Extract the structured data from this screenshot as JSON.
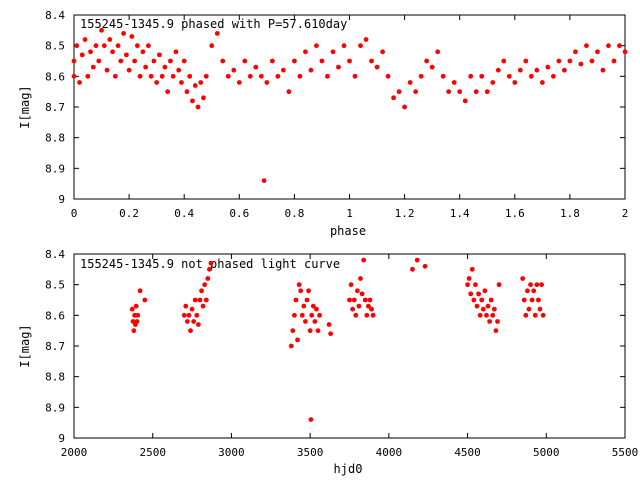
{
  "chart_data": [
    {
      "type": "scatter",
      "title": "155245-1345.9 phased with P=57.610day",
      "xlabel": "phase",
      "ylabel": "I[mag]",
      "xlim": [
        0,
        2
      ],
      "ylim": [
        8.4,
        9.0
      ],
      "y_inverted": true,
      "x_ticks": [
        "0",
        "0.2",
        "0.4",
        "0.6",
        "0.8",
        "1",
        "1.2",
        "1.4",
        "1.6",
        "1.8",
        "2"
      ],
      "y_ticks": [
        "8.4",
        "8.5",
        "8.6",
        "8.7",
        "8.8",
        "8.9",
        "9"
      ],
      "marker_color": "#ff0000",
      "series": [
        {
          "points": [
            [
              0.0,
              8.55
            ],
            [
              0.0,
              8.6
            ],
            [
              0.01,
              8.5
            ],
            [
              0.02,
              8.62
            ],
            [
              0.03,
              8.53
            ],
            [
              0.04,
              8.48
            ],
            [
              0.05,
              8.6
            ],
            [
              0.06,
              8.52
            ],
            [
              0.07,
              8.57
            ],
            [
              0.08,
              8.5
            ],
            [
              0.09,
              8.55
            ],
            [
              0.1,
              8.45
            ],
            [
              0.11,
              8.5
            ],
            [
              0.12,
              8.58
            ],
            [
              0.13,
              8.48
            ],
            [
              0.14,
              8.52
            ],
            [
              0.15,
              8.6
            ],
            [
              0.16,
              8.5
            ],
            [
              0.17,
              8.55
            ],
            [
              0.18,
              8.46
            ],
            [
              0.19,
              8.53
            ],
            [
              0.2,
              8.58
            ],
            [
              0.21,
              8.47
            ],
            [
              0.22,
              8.55
            ],
            [
              0.23,
              8.5
            ],
            [
              0.24,
              8.6
            ],
            [
              0.25,
              8.52
            ],
            [
              0.26,
              8.57
            ],
            [
              0.27,
              8.5
            ],
            [
              0.28,
              8.6
            ],
            [
              0.29,
              8.55
            ],
            [
              0.3,
              8.62
            ],
            [
              0.31,
              8.53
            ],
            [
              0.32,
              8.6
            ],
            [
              0.33,
              8.57
            ],
            [
              0.34,
              8.65
            ],
            [
              0.35,
              8.55
            ],
            [
              0.36,
              8.6
            ],
            [
              0.37,
              8.52
            ],
            [
              0.38,
              8.58
            ],
            [
              0.39,
              8.62
            ],
            [
              0.4,
              8.55
            ],
            [
              0.41,
              8.65
            ],
            [
              0.42,
              8.6
            ],
            [
              0.43,
              8.68
            ],
            [
              0.44,
              8.63
            ],
            [
              0.45,
              8.7
            ],
            [
              0.46,
              8.62
            ],
            [
              0.47,
              8.67
            ],
            [
              0.48,
              8.6
            ],
            [
              0.5,
              8.5
            ],
            [
              0.52,
              8.46
            ],
            [
              0.54,
              8.55
            ],
            [
              0.56,
              8.6
            ],
            [
              0.58,
              8.58
            ],
            [
              0.6,
              8.62
            ],
            [
              0.62,
              8.55
            ],
            [
              0.64,
              8.6
            ],
            [
              0.66,
              8.57
            ],
            [
              0.68,
              8.6
            ],
            [
              0.69,
              8.94
            ],
            [
              0.7,
              8.62
            ],
            [
              0.72,
              8.55
            ],
            [
              0.74,
              8.6
            ],
            [
              0.76,
              8.58
            ],
            [
              0.78,
              8.65
            ],
            [
              0.8,
              8.55
            ],
            [
              0.82,
              8.6
            ],
            [
              0.84,
              8.52
            ],
            [
              0.86,
              8.58
            ],
            [
              0.88,
              8.5
            ],
            [
              0.9,
              8.55
            ],
            [
              0.92,
              8.6
            ],
            [
              0.94,
              8.52
            ],
            [
              0.96,
              8.57
            ],
            [
              0.98,
              8.5
            ],
            [
              1.0,
              8.55
            ],
            [
              1.02,
              8.6
            ],
            [
              1.04,
              8.5
            ],
            [
              1.06,
              8.48
            ],
            [
              1.08,
              8.55
            ],
            [
              1.1,
              8.57
            ],
            [
              1.12,
              8.52
            ],
            [
              1.14,
              8.6
            ],
            [
              1.16,
              8.67
            ],
            [
              1.18,
              8.65
            ],
            [
              1.2,
              8.7
            ],
            [
              1.22,
              8.62
            ],
            [
              1.24,
              8.65
            ],
            [
              1.26,
              8.6
            ],
            [
              1.28,
              8.55
            ],
            [
              1.3,
              8.57
            ],
            [
              1.32,
              8.52
            ],
            [
              1.34,
              8.6
            ],
            [
              1.36,
              8.65
            ],
            [
              1.38,
              8.62
            ],
            [
              1.4,
              8.65
            ],
            [
              1.42,
              8.68
            ],
            [
              1.44,
              8.6
            ],
            [
              1.46,
              8.65
            ],
            [
              1.48,
              8.6
            ],
            [
              1.5,
              8.65
            ],
            [
              1.52,
              8.62
            ],
            [
              1.54,
              8.58
            ],
            [
              1.56,
              8.55
            ],
            [
              1.58,
              8.6
            ],
            [
              1.6,
              8.62
            ],
            [
              1.62,
              8.58
            ],
            [
              1.64,
              8.55
            ],
            [
              1.66,
              8.6
            ],
            [
              1.68,
              8.58
            ],
            [
              1.7,
              8.62
            ],
            [
              1.72,
              8.57
            ],
            [
              1.74,
              8.6
            ],
            [
              1.76,
              8.55
            ],
            [
              1.78,
              8.58
            ],
            [
              1.8,
              8.55
            ],
            [
              1.82,
              8.52
            ],
            [
              1.84,
              8.56
            ],
            [
              1.86,
              8.5
            ],
            [
              1.88,
              8.55
            ],
            [
              1.9,
              8.52
            ],
            [
              1.92,
              8.58
            ],
            [
              1.94,
              8.5
            ],
            [
              1.96,
              8.55
            ],
            [
              1.98,
              8.5
            ],
            [
              2.0,
              8.52
            ]
          ]
        }
      ]
    },
    {
      "type": "scatter",
      "title": "155245-1345.9 not phased light curve",
      "xlabel": "hjd0",
      "ylabel": "I[mag]",
      "xlim": [
        2000,
        5500
      ],
      "ylim": [
        8.4,
        9.0
      ],
      "y_inverted": true,
      "x_ticks": [
        "2000",
        "2500",
        "3000",
        "3500",
        "4000",
        "4500",
        "5000",
        "5500"
      ],
      "y_ticks": [
        "8.4",
        "8.5",
        "8.6",
        "8.7",
        "8.8",
        "8.9",
        "9"
      ],
      "marker_color": "#ff0000",
      "series": [
        {
          "points": [
            [
              2370,
              8.58
            ],
            [
              2375,
              8.62
            ],
            [
              2380,
              8.65
            ],
            [
              2385,
              8.6
            ],
            [
              2390,
              8.63
            ],
            [
              2395,
              8.57
            ],
            [
              2400,
              8.62
            ],
            [
              2405,
              8.6
            ],
            [
              2420,
              8.52
            ],
            [
              2450,
              8.55
            ],
            [
              2700,
              8.6
            ],
            [
              2710,
              8.57
            ],
            [
              2720,
              8.62
            ],
            [
              2730,
              8.6
            ],
            [
              2740,
              8.65
            ],
            [
              2750,
              8.58
            ],
            [
              2760,
              8.62
            ],
            [
              2770,
              8.55
            ],
            [
              2780,
              8.6
            ],
            [
              2790,
              8.63
            ],
            [
              2800,
              8.55
            ],
            [
              2810,
              8.52
            ],
            [
              2820,
              8.57
            ],
            [
              2830,
              8.5
            ],
            [
              2840,
              8.55
            ],
            [
              2850,
              8.48
            ],
            [
              2860,
              8.45
            ],
            [
              2870,
              8.43
            ],
            [
              3380,
              8.7
            ],
            [
              3390,
              8.65
            ],
            [
              3400,
              8.6
            ],
            [
              3410,
              8.55
            ],
            [
              3420,
              8.68
            ],
            [
              3430,
              8.5
            ],
            [
              3440,
              8.52
            ],
            [
              3450,
              8.6
            ],
            [
              3460,
              8.57
            ],
            [
              3470,
              8.62
            ],
            [
              3480,
              8.55
            ],
            [
              3490,
              8.52
            ],
            [
              3500,
              8.65
            ],
            [
              3505,
              8.94
            ],
            [
              3510,
              8.6
            ],
            [
              3520,
              8.57
            ],
            [
              3530,
              8.62
            ],
            [
              3540,
              8.58
            ],
            [
              3550,
              8.65
            ],
            [
              3560,
              8.6
            ],
            [
              3620,
              8.63
            ],
            [
              3630,
              8.66
            ],
            [
              3750,
              8.55
            ],
            [
              3760,
              8.5
            ],
            [
              3770,
              8.58
            ],
            [
              3780,
              8.55
            ],
            [
              3790,
              8.6
            ],
            [
              3800,
              8.52
            ],
            [
              3810,
              8.57
            ],
            [
              3820,
              8.48
            ],
            [
              3830,
              8.53
            ],
            [
              3840,
              8.42
            ],
            [
              3850,
              8.55
            ],
            [
              3860,
              8.6
            ],
            [
              3870,
              8.57
            ],
            [
              3880,
              8.55
            ],
            [
              3890,
              8.58
            ],
            [
              3900,
              8.6
            ],
            [
              4150,
              8.45
            ],
            [
              4180,
              8.42
            ],
            [
              4230,
              8.44
            ],
            [
              4500,
              8.5
            ],
            [
              4510,
              8.48
            ],
            [
              4520,
              8.53
            ],
            [
              4530,
              8.45
            ],
            [
              4540,
              8.55
            ],
            [
              4550,
              8.5
            ],
            [
              4560,
              8.57
            ],
            [
              4570,
              8.53
            ],
            [
              4580,
              8.6
            ],
            [
              4590,
              8.55
            ],
            [
              4600,
              8.58
            ],
            [
              4610,
              8.52
            ],
            [
              4620,
              8.6
            ],
            [
              4630,
              8.57
            ],
            [
              4640,
              8.62
            ],
            [
              4650,
              8.55
            ],
            [
              4660,
              8.6
            ],
            [
              4670,
              8.58
            ],
            [
              4680,
              8.65
            ],
            [
              4690,
              8.62
            ],
            [
              4700,
              8.5
            ],
            [
              4850,
              8.48
            ],
            [
              4860,
              8.55
            ],
            [
              4870,
              8.6
            ],
            [
              4880,
              8.52
            ],
            [
              4890,
              8.58
            ],
            [
              4900,
              8.5
            ],
            [
              4910,
              8.55
            ],
            [
              4920,
              8.52
            ],
            [
              4930,
              8.6
            ],
            [
              4940,
              8.5
            ],
            [
              4950,
              8.55
            ],
            [
              4960,
              8.58
            ],
            [
              4970,
              8.5
            ],
            [
              4980,
              8.6
            ]
          ]
        }
      ]
    }
  ]
}
